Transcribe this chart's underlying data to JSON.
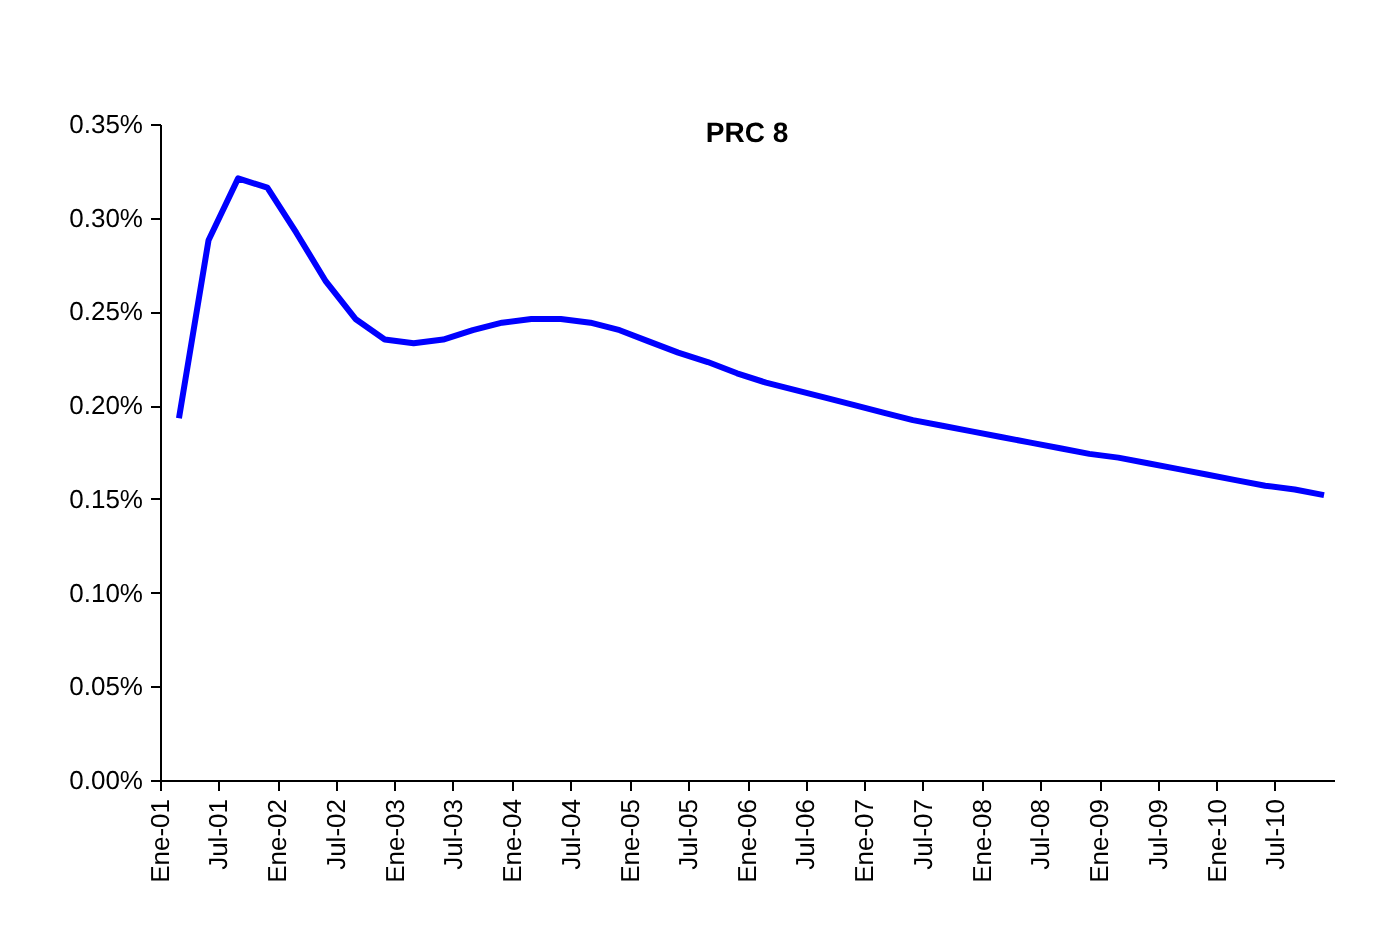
{
  "chart_data": {
    "type": "line",
    "title": "PRC 8",
    "x": [
      "2001-03",
      "2001-06",
      "2001-09",
      "2001-12",
      "2002-03",
      "2002-06",
      "2002-09",
      "2002-12",
      "2003-03",
      "2003-06",
      "2003-09",
      "2003-12",
      "2004-03",
      "2004-06",
      "2004-09",
      "2004-12",
      "2005-03",
      "2005-06",
      "2005-09",
      "2005-12",
      "2006-03",
      "2006-06",
      "2006-09",
      "2006-12",
      "2007-03",
      "2007-06",
      "2007-09",
      "2007-12",
      "2008-03",
      "2008-06",
      "2008-09",
      "2008-12",
      "2009-03",
      "2009-06",
      "2009-09",
      "2009-12",
      "2010-03",
      "2010-06",
      "2010-09",
      "2010-12"
    ],
    "series": [
      {
        "color": "#0000ff",
        "values": [
          0.193,
          0.288,
          0.321,
          0.316,
          0.292,
          0.266,
          0.246,
          0.235,
          0.233,
          0.235,
          0.24,
          0.244,
          0.246,
          0.246,
          0.244,
          0.24,
          0.234,
          0.228,
          0.223,
          0.217,
          0.212,
          0.208,
          0.204,
          0.2,
          0.196,
          0.192,
          0.189,
          0.186,
          0.183,
          0.18,
          0.177,
          0.174,
          0.172,
          0.169,
          0.166,
          0.163,
          0.16,
          0.157,
          0.155,
          0.152
        ]
      }
    ],
    "xlim": [
      "2001-01",
      "2011-01"
    ],
    "xticks": [
      {
        "value": "2001-01",
        "label": "Ene-01"
      },
      {
        "value": "2001-07",
        "label": "Jul-01"
      },
      {
        "value": "2002-01",
        "label": "Ene-02"
      },
      {
        "value": "2002-07",
        "label": "Jul-02"
      },
      {
        "value": "2003-01",
        "label": "Ene-03"
      },
      {
        "value": "2003-07",
        "label": "Jul-03"
      },
      {
        "value": "2004-01",
        "label": "Ene-04"
      },
      {
        "value": "2004-07",
        "label": "Jul-04"
      },
      {
        "value": "2005-01",
        "label": "Ene-05"
      },
      {
        "value": "2005-07",
        "label": "Jul-05"
      },
      {
        "value": "2006-01",
        "label": "Ene-06"
      },
      {
        "value": "2006-07",
        "label": "Jul-06"
      },
      {
        "value": "2007-01",
        "label": "Ene-07"
      },
      {
        "value": "2007-07",
        "label": "Jul-07"
      },
      {
        "value": "2008-01",
        "label": "Ene-08"
      },
      {
        "value": "2008-07",
        "label": "Jul-08"
      },
      {
        "value": "2009-01",
        "label": "Ene-09"
      },
      {
        "value": "2009-07",
        "label": "Jul-09"
      },
      {
        "value": "2010-01",
        "label": "Ene-10"
      },
      {
        "value": "2010-07",
        "label": "Jul-10"
      }
    ],
    "ylim": [
      0,
      0.35
    ],
    "yticks": [
      {
        "value": 0,
        "label": "0.00%"
      },
      {
        "value": 0.05,
        "label": "0.05%"
      },
      {
        "value": 0.1,
        "label": "0.10%"
      },
      {
        "value": 0.15,
        "label": "0.15%"
      },
      {
        "value": 0.2,
        "label": "0.20%"
      },
      {
        "value": 0.25,
        "label": "0.25%"
      },
      {
        "value": 0.3,
        "label": "0.30%"
      },
      {
        "value": 0.35,
        "label": "0.35%"
      }
    ],
    "grid": false,
    "marker": "none",
    "line_style": "solid"
  }
}
